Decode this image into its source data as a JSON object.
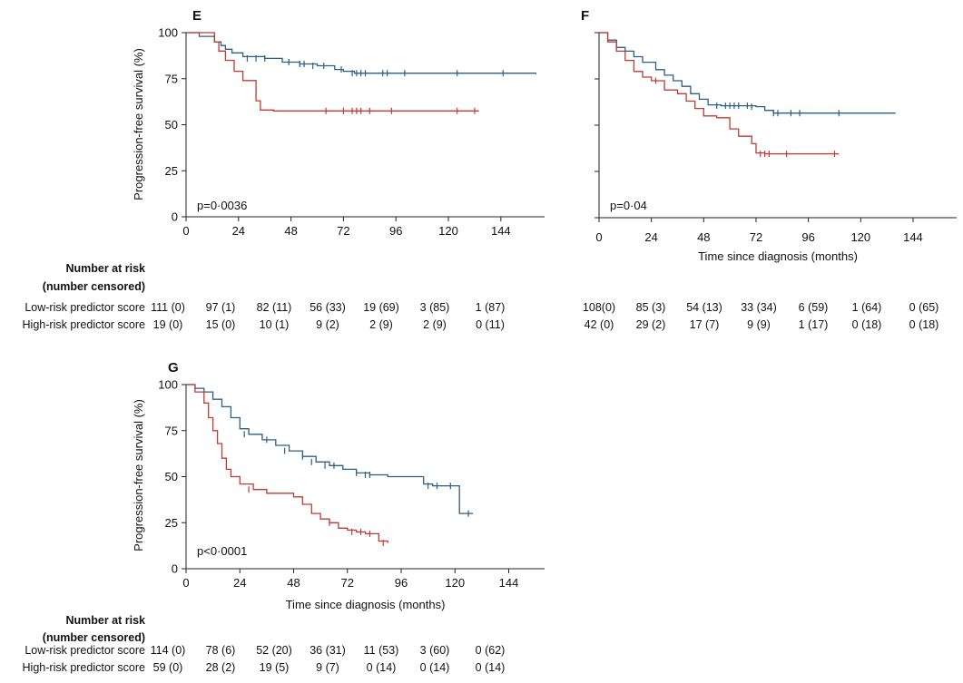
{
  "chart_data": [
    {
      "type": "line",
      "panel_label": "E",
      "ylabel": "Progression-free survival (%)",
      "xlabel": "",
      "p_value": "p=0·0036",
      "xlim": [
        0,
        164
      ],
      "ylim": [
        0,
        100
      ],
      "xticks": [
        "0",
        "24",
        "48",
        "72",
        "96",
        "120",
        "144"
      ],
      "yticks": [
        "0",
        "25",
        "50",
        "75",
        "100"
      ],
      "series": [
        {
          "key": "low",
          "color": "#2c5f86",
          "x": [
            0,
            6,
            13,
            16,
            18,
            21,
            26,
            36,
            44,
            52,
            60,
            68,
            72,
            77,
            96,
            120,
            160
          ],
          "y": [
            100,
            98,
            95,
            93,
            91,
            89,
            87,
            86,
            84,
            83,
            82,
            80,
            79,
            78,
            78,
            78,
            77.5
          ]
        },
        {
          "key": "high",
          "color": "#c43a31",
          "x": [
            0,
            13,
            15,
            18,
            22,
            26,
            32,
            34,
            40,
            134
          ],
          "y": [
            100,
            95,
            90,
            85,
            79,
            74,
            63,
            58,
            57.5,
            57.5
          ]
        }
      ],
      "censor_marks": [
        {
          "key": "low",
          "x": [
            28,
            32,
            36,
            47,
            52,
            54,
            58,
            63,
            71,
            76,
            78,
            80,
            82,
            90,
            92,
            100,
            124,
            145
          ],
          "y": [
            86,
            86,
            86,
            84,
            83,
            83,
            82,
            82,
            80,
            78,
            78,
            78,
            78,
            78,
            78,
            78,
            78,
            78
          ]
        },
        {
          "key": "high",
          "x": [
            64,
            72,
            76,
            78,
            80,
            84,
            94,
            124,
            132
          ],
          "y": [
            57.5,
            57.5,
            57.5,
            57.5,
            57.5,
            57.5,
            57.5,
            57.5,
            57.5
          ]
        }
      ],
      "risk_table": {
        "header": [
          "Number at risk",
          "(number censored)"
        ],
        "rows": [
          {
            "label": "Low-risk predictor score",
            "values": [
              "111 (0)",
              "97 (1)",
              "82 (11)",
              "56 (33)",
              "19 (69)",
              "3 (85)",
              "1 (87)"
            ]
          },
          {
            "label": "High-risk predictor score",
            "values": [
              "19 (0)",
              "15 (0)",
              "10 (1)",
              "9 (2)",
              "2 (9)",
              "2 (9)",
              "0 (11)"
            ]
          }
        ]
      }
    },
    {
      "type": "line",
      "panel_label": "F",
      "ylabel": "",
      "xlabel": "Time since diagnosis (months)",
      "p_value": "p=0·04",
      "xlim": [
        0,
        164
      ],
      "ylim": [
        0,
        100
      ],
      "xticks": [
        "0",
        "24",
        "48",
        "72",
        "96",
        "120",
        "144"
      ],
      "yticks": [],
      "series": [
        {
          "key": "low",
          "color": "#2c5f86",
          "x": [
            0,
            4,
            8,
            12,
            16,
            20,
            26,
            30,
            34,
            38,
            42,
            46,
            50,
            56,
            60,
            72,
            76,
            80,
            96,
            136
          ],
          "y": [
            100,
            96,
            92,
            90,
            87,
            84,
            80,
            77,
            74,
            71,
            67,
            64,
            61,
            60.5,
            60.5,
            60,
            58,
            56.5,
            56.5,
            56.5
          ]
        },
        {
          "key": "high",
          "color": "#c43a31",
          "x": [
            0,
            4,
            8,
            12,
            16,
            20,
            24,
            30,
            36,
            40,
            44,
            48,
            54,
            58,
            60,
            64,
            70,
            72,
            76,
            80,
            110
          ],
          "y": [
            100,
            95,
            90,
            85,
            79,
            76,
            74,
            69,
            67,
            63,
            59,
            55,
            54,
            54,
            48,
            44,
            40,
            35,
            34.5,
            34.5,
            34.5
          ]
        }
      ],
      "censor_marks": [
        {
          "key": "low",
          "x": [
            54,
            58,
            60,
            62,
            64,
            68,
            70,
            80,
            82,
            88,
            92,
            110
          ],
          "y": [
            60.5,
            60.5,
            60.5,
            60.5,
            60.5,
            60.5,
            60,
            56.5,
            56.5,
            56.5,
            56.5,
            56.5
          ]
        },
        {
          "key": "high",
          "x": [
            26,
            74,
            76,
            78,
            86,
            108
          ],
          "y": [
            74,
            34.5,
            34.5,
            34.5,
            34.5,
            34.5
          ]
        }
      ],
      "risk_table": {
        "header": [],
        "rows": [
          {
            "label": "",
            "values": [
              "108(0)",
              "85 (3)",
              "54 (13)",
              "33 (34)",
              "6 (59)",
              "1 (64)",
              "0 (65)"
            ]
          },
          {
            "label": "",
            "values": [
              "42 (0)",
              "29 (2)",
              "17 (7)",
              "9 (9)",
              "1 (17)",
              "0 (18)",
              "0 (18)"
            ]
          }
        ]
      }
    },
    {
      "type": "line",
      "panel_label": "G",
      "ylabel": "Progression-free survival (%)",
      "xlabel": "Time since diagnosis (months)",
      "p_value": "p<0·0001",
      "xlim": [
        0,
        160
      ],
      "ylim": [
        0,
        100
      ],
      "xticks": [
        "0",
        "24",
        "48",
        "72",
        "96",
        "120",
        "144"
      ],
      "yticks": [
        "0",
        "25",
        "50",
        "75",
        "100"
      ],
      "series": [
        {
          "key": "low",
          "color": "#2c5f86",
          "x": [
            0,
            4,
            8,
            12,
            16,
            20,
            24,
            28,
            34,
            40,
            46,
            52,
            58,
            64,
            70,
            76,
            82,
            90,
            100,
            106,
            110,
            114,
            118,
            122,
            124,
            128
          ],
          "y": [
            100,
            98,
            96,
            92,
            88,
            82,
            76,
            73,
            70,
            67,
            64,
            61,
            58,
            56,
            54,
            52,
            51,
            50,
            50,
            46,
            45,
            45,
            45,
            30,
            30,
            30
          ]
        },
        {
          "key": "high",
          "color": "#c43a31",
          "x": [
            0,
            4,
            8,
            10,
            12,
            14,
            16,
            18,
            20,
            24,
            30,
            36,
            48,
            52,
            56,
            60,
            64,
            68,
            72,
            76,
            80,
            86,
            90
          ],
          "y": [
            100,
            96,
            90,
            82,
            75,
            68,
            60,
            54,
            50,
            46,
            43,
            41,
            39,
            35,
            30,
            27,
            25,
            22,
            21,
            20,
            19,
            15,
            14
          ]
        }
      ],
      "censor_marks": [
        {
          "key": "low",
          "x": [
            26,
            36,
            44,
            52,
            56,
            62,
            66,
            76,
            80,
            82,
            108,
            112,
            118,
            126
          ],
          "y": [
            73,
            70,
            64,
            61,
            58,
            56,
            56,
            52,
            51,
            51,
            45,
            45,
            45,
            30
          ]
        },
        {
          "key": "high",
          "x": [
            28,
            64,
            74,
            78,
            82,
            88
          ],
          "y": [
            43,
            25,
            20,
            20,
            19,
            14
          ]
        }
      ],
      "risk_table": {
        "header": [
          "Number at risk",
          "(number censored)"
        ],
        "rows": [
          {
            "label": "Low-risk predictor score",
            "values": [
              "114 (0)",
              "78 (6)",
              "52 (20)",
              "36 (31)",
              "11 (53)",
              "3 (60)",
              "0 (62)"
            ]
          },
          {
            "label": "High-risk predictor score",
            "values": [
              "59 (0)",
              "28 (2)",
              "19 (5)",
              "9 (7)",
              "0 (14)",
              "0 (14)",
              "0 (14)"
            ]
          }
        ]
      }
    }
  ]
}
